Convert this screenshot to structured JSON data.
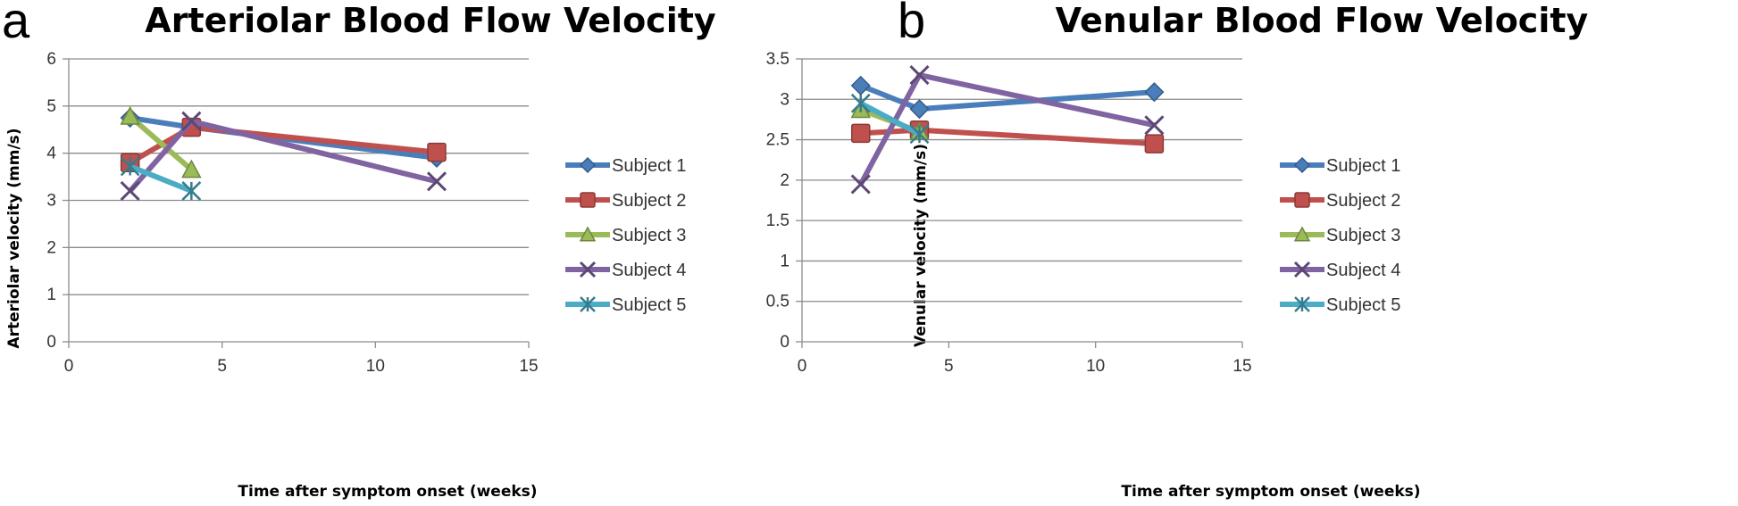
{
  "chart_data": [
    {
      "panel": "a",
      "type": "line",
      "title": "Arteriolar Blood Flow Velocity",
      "xlabel": "Time after symptom onset (weeks)",
      "ylabel": "Arteriolar velocity (mm/s)",
      "xlim": [
        0,
        15
      ],
      "ylim": [
        0,
        6
      ],
      "xticks": [
        0,
        5,
        10,
        15
      ],
      "yticks": [
        0,
        1,
        2,
        3,
        4,
        5,
        6
      ],
      "grid": "horizontal",
      "legend": "right",
      "series": [
        {
          "name": "Subject 1",
          "color": "#4a7ebb",
          "marker": "diamond",
          "points": [
            [
              2,
              4.75
            ],
            [
              4,
              4.55
            ],
            [
              12,
              3.9
            ]
          ]
        },
        {
          "name": "Subject 2",
          "color": "#c0504d",
          "marker": "square",
          "points": [
            [
              2,
              3.8
            ],
            [
              4,
              4.55
            ],
            [
              12,
              4.02
            ]
          ]
        },
        {
          "name": "Subject 3",
          "color": "#9bbb59",
          "marker": "triangle",
          "points": [
            [
              2,
              4.78
            ],
            [
              4,
              3.65
            ]
          ]
        },
        {
          "name": "Subject 4",
          "color": "#8064a2",
          "marker": "x",
          "points": [
            [
              2,
              3.2
            ],
            [
              4,
              4.68
            ],
            [
              12,
              3.4
            ]
          ]
        },
        {
          "name": "Subject 5",
          "color": "#4bacc6",
          "marker": "star",
          "points": [
            [
              2,
              3.72
            ],
            [
              4,
              3.2
            ]
          ]
        }
      ]
    },
    {
      "panel": "b",
      "type": "line",
      "title": "Venular Blood Flow Velocity",
      "xlabel": "Time after symptom onset (weeks)",
      "ylabel": "Venular velocity (mm/s)",
      "xlim": [
        0,
        15
      ],
      "ylim": [
        0,
        3.5
      ],
      "xticks": [
        0,
        5,
        10,
        15
      ],
      "yticks": [
        0,
        0.5,
        1,
        1.5,
        2,
        2.5,
        3,
        3.5
      ],
      "grid": "horizontal",
      "legend": "right",
      "series": [
        {
          "name": "Subject 1",
          "color": "#4a7ebb",
          "marker": "diamond",
          "points": [
            [
              2,
              3.17
            ],
            [
              4,
              2.88
            ],
            [
              12,
              3.09
            ]
          ]
        },
        {
          "name": "Subject 2",
          "color": "#c0504d",
          "marker": "square",
          "points": [
            [
              2,
              2.58
            ],
            [
              4,
              2.62
            ],
            [
              12,
              2.45
            ]
          ]
        },
        {
          "name": "Subject 3",
          "color": "#9bbb59",
          "marker": "triangle",
          "points": [
            [
              2,
              2.87
            ],
            [
              4,
              2.6
            ]
          ]
        },
        {
          "name": "Subject 4",
          "color": "#8064a2",
          "marker": "x",
          "points": [
            [
              2,
              1.95
            ],
            [
              4,
              3.3
            ],
            [
              12,
              2.68
            ]
          ]
        },
        {
          "name": "Subject 5",
          "color": "#4bacc6",
          "marker": "star",
          "points": [
            [
              2,
              2.95
            ],
            [
              4,
              2.57
            ]
          ]
        }
      ]
    }
  ]
}
